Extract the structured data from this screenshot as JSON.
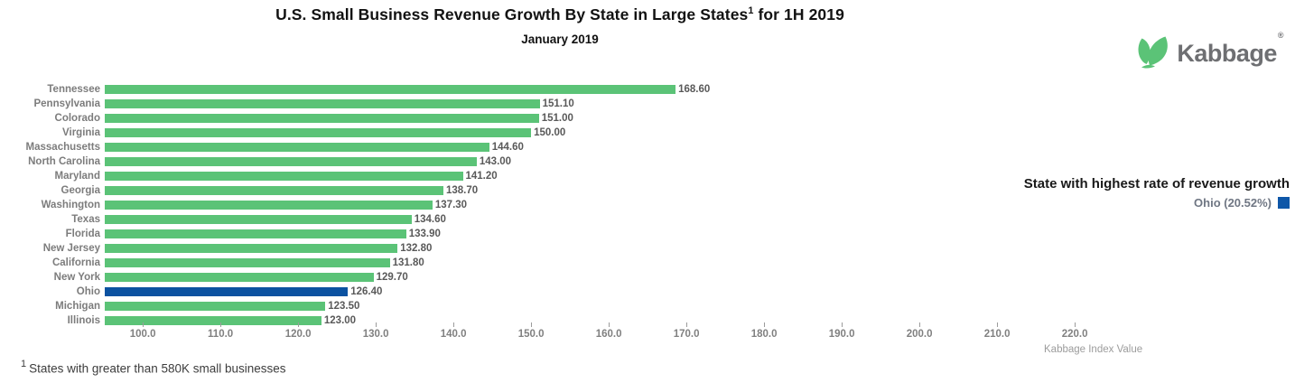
{
  "header": {
    "title_main": "U.S. Small Business Revenue Growth By State in Large States",
    "title_sup": "1",
    "title_tail": " for 1H 2019",
    "subtitle": "January 2019"
  },
  "logo": {
    "text": "Kabbage",
    "registered": "®",
    "icon": "kabbage-leaves-icon",
    "green": "#5BC377",
    "gray": "#6E6F72"
  },
  "legend": {
    "title": "State with highest rate of revenue growth",
    "entry_label": "Ohio (20.52%)",
    "swatch_color": "#0E57A8"
  },
  "footnote": {
    "sup": "1",
    "text": "States with greater than 580K small businesses"
  },
  "colors": {
    "bar_green": "#5BC377",
    "highlight_blue": "#0B52A1",
    "title_text": "#121212",
    "label_gray": "#7C7C7C",
    "value_gray": "#595959"
  },
  "chart_data": {
    "type": "bar",
    "orientation": "horizontal",
    "title": "U.S. Small Business Revenue Growth By State in Large States¹ for 1H 2019",
    "subtitle": "January 2019",
    "categories": [
      "Tennessee",
      "Pennsylvania",
      "Colorado",
      "Virginia",
      "Massachusetts",
      "North Carolina",
      "Maryland",
      "Georgia",
      "Washington",
      "Texas",
      "Florida",
      "New Jersey",
      "California",
      "New York",
      "Ohio",
      "Michigan",
      "Illinois"
    ],
    "values": [
      168.6,
      151.1,
      151.0,
      150.0,
      144.6,
      143.0,
      141.2,
      138.7,
      137.3,
      134.6,
      133.9,
      132.8,
      131.8,
      129.7,
      126.4,
      123.5,
      123.0
    ],
    "bar_color": "#5BC377",
    "highlight": {
      "category": "Ohio",
      "color": "#0B52A1",
      "legend_label": "Ohio (20.52%)",
      "growth_rate_pct": 20.52
    },
    "xlabel": "Kabbage Index Value",
    "xticks": [
      100.0,
      110.0,
      120.0,
      130.0,
      140.0,
      150.0,
      160.0,
      170.0,
      180.0,
      190.0,
      200.0,
      210.0,
      220.0
    ],
    "xlim": [
      95.1,
      223.3
    ],
    "grid": false,
    "legend_position": "right",
    "value_label_decimals": 2,
    "tick_label_decimals": 1
  }
}
